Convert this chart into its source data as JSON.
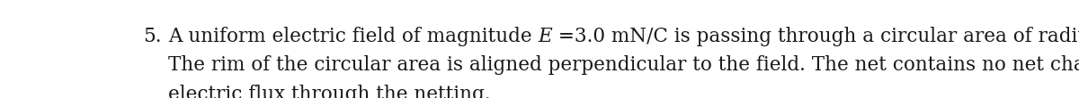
{
  "number": "5.",
  "line2": "The rim of the circular area is aligned perpendicular to the field. The net contains no net charge. Find the",
  "line3": "electric flux through the netting.",
  "font_size": 15.5,
  "font_family": "DejaVu Serif",
  "text_color": "#1a1a1a",
  "background_color": "#ffffff",
  "fig_width": 12.0,
  "fig_height": 1.1,
  "dpi": 100
}
